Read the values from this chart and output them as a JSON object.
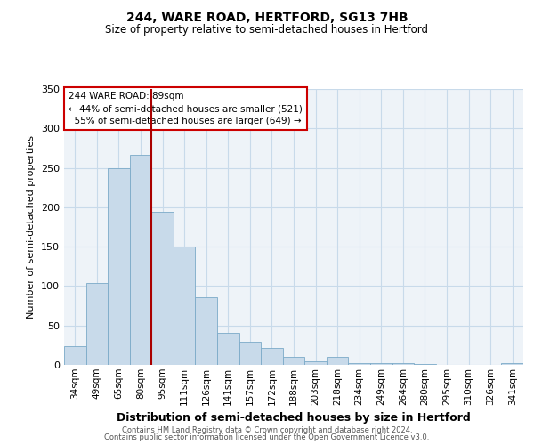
{
  "title": "244, WARE ROAD, HERTFORD, SG13 7HB",
  "subtitle": "Size of property relative to semi-detached houses in Hertford",
  "xlabel": "Distribution of semi-detached houses by size in Hertford",
  "ylabel": "Number of semi-detached properties",
  "bar_color": "#c8daea",
  "bar_edge_color": "#7baac8",
  "grid_color": "#c8daea",
  "background_color": "#eef3f8",
  "annotation_box_color": "#cc0000",
  "vline_color": "#aa0000",
  "categories": [
    "34sqm",
    "49sqm",
    "65sqm",
    "80sqm",
    "95sqm",
    "111sqm",
    "126sqm",
    "141sqm",
    "157sqm",
    "172sqm",
    "188sqm",
    "203sqm",
    "218sqm",
    "234sqm",
    "249sqm",
    "264sqm",
    "280sqm",
    "295sqm",
    "310sqm",
    "326sqm",
    "341sqm"
  ],
  "values": [
    24,
    104,
    250,
    267,
    194,
    150,
    86,
    41,
    29,
    21,
    10,
    4,
    10,
    2,
    2,
    2,
    1,
    0,
    0,
    0,
    2
  ],
  "ylim": [
    0,
    350
  ],
  "yticks": [
    0,
    50,
    100,
    150,
    200,
    250,
    300,
    350
  ],
  "property_label": "244 WARE ROAD: 89sqm",
  "pct_smaller": "44%",
  "count_smaller": 521,
  "pct_larger": "55%",
  "count_larger": 649,
  "vline_position": 3.5,
  "footer1": "Contains HM Land Registry data © Crown copyright and database right 2024.",
  "footer2": "Contains public sector information licensed under the Open Government Licence v3.0."
}
